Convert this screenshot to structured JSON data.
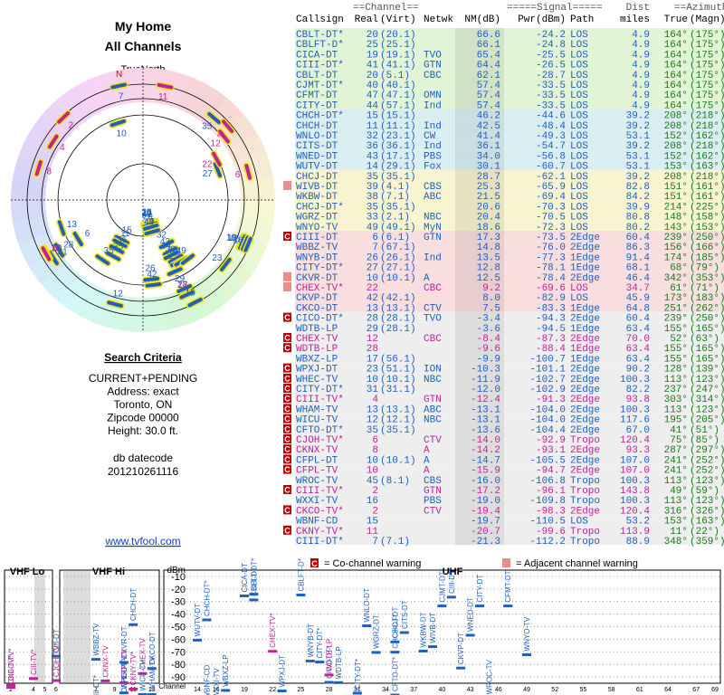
{
  "header": {
    "title": "My Home",
    "subtitle": "All Channels",
    "north_label": "TrueNorth",
    "north": "N"
  },
  "search": {
    "heading": "Search Criteria",
    "lines": [
      "CURRENT+PENDING",
      "Address: exact",
      "Toronto, ON",
      "Zipcode 00000",
      "Height: 30.0 ft."
    ],
    "datecode_label": "db datecode",
    "datecode": "201210261116",
    "link": "www.tvfool.com"
  },
  "table": {
    "group_headers": [
      "==Channel==",
      "=====Signal=====",
      "Dist",
      "==Azimuth=="
    ],
    "columns": [
      "Callsign",
      "Real",
      "(Virt)",
      "Netwk",
      "NM(dB)",
      "Pwr(dBm)",
      "Path",
      "miles",
      "True",
      "(Magn)"
    ],
    "rows": [
      [
        "CBLT-DT*",
        "20",
        "(20.1)",
        null,
        "66.6",
        "-24.2",
        "LOS",
        "4.9",
        "164°",
        "(175°)"
      ],
      [
        "CBLFT-D*",
        "25",
        "(25.1)",
        null,
        "66.1",
        "-24.8",
        "LOS",
        "4.9",
        "164°",
        "(175°)"
      ],
      [
        "CICA-DT",
        "19",
        "(19.1)",
        "TVO",
        "65.4",
        "-25.5",
        "LOS",
        "4.9",
        "164°",
        "(175°)"
      ],
      [
        "CIII-DT*",
        "41",
        "(41.1)",
        "GTN",
        "64.4",
        "-26.5",
        "LOS",
        "4.9",
        "164°",
        "(175°)"
      ],
      [
        "CBLT-DT",
        "20",
        "(5.1)",
        "CBC",
        "62.1",
        "-28.7",
        "LOS",
        "4.9",
        "164°",
        "(175°)"
      ],
      [
        "CJMT-DT*",
        "40",
        "(40.1)",
        null,
        "57.4",
        "-33.5",
        "LOS",
        "4.9",
        "164°",
        "(175°)"
      ],
      [
        "CFMT-DT",
        "47",
        "(47.1)",
        "OMN",
        "57.4",
        "-33.5",
        "LOS",
        "4.9",
        "164°",
        "(175°)"
      ],
      [
        "CITY-DT",
        "44",
        "(57.1)",
        "Ind",
        "57.4",
        "-33.5",
        "LOS",
        "4.9",
        "164°",
        "(175°)"
      ],
      [
        "CHCH-DT*",
        "15",
        "(15.1)",
        null,
        "46.2",
        "-44.6",
        "LOS",
        "39.2",
        "208°",
        "(218°)"
      ],
      [
        "CHCH-DT",
        "11",
        "(11.1)",
        "Ind",
        "42.5",
        "-48.4",
        "LOS",
        "39.2",
        "208°",
        "(218°)"
      ],
      [
        "WNLO-DT",
        "32",
        "(23.1)",
        "CW",
        "41.4",
        "-49.3",
        "LOS",
        "53.1",
        "152°",
        "(162°)"
      ],
      [
        "CITS-DT",
        "36",
        "(36.1)",
        "Ind",
        "36.1",
        "-54.7",
        "LOS",
        "39.2",
        "208°",
        "(218°)"
      ],
      [
        "WNED-DT",
        "43",
        "(17.1)",
        "PBS",
        "34.0",
        "-56.8",
        "LOS",
        "53.1",
        "152°",
        "(162°)"
      ],
      [
        "WUTV-DT",
        "14",
        "(29.1)",
        "Fox",
        "30.1",
        "-60.7",
        "LOS",
        "53.1",
        "153°",
        "(163°)"
      ],
      [
        "CHCJ-DT",
        "35",
        "(35.1)",
        null,
        "28.7",
        "-62.1",
        "LOS",
        "39.2",
        "208°",
        "(218°)"
      ],
      [
        "WIVB-DT",
        "39",
        "(4.1)",
        "CBS",
        "25.3",
        "-65.9",
        "LOS",
        "82.8",
        "151°",
        "(161°)"
      ],
      [
        "WKBW-DT",
        "38",
        "(7.1)",
        "ABC",
        "21.5",
        "-69.4",
        "LOS",
        "84.2",
        "151°",
        "(161°)"
      ],
      [
        "CHCJ-DT*",
        "35",
        "(35.1)",
        null,
        "20.6",
        "-70.3",
        "LOS",
        "39.9",
        "214°",
        "(225°)"
      ],
      [
        "WGRZ-DT",
        "33",
        "(2.1)",
        "NBC",
        "20.4",
        "-70.5",
        "LOS",
        "80.8",
        "148°",
        "(158°)"
      ],
      [
        "WNYO-TV",
        "49",
        "(49.1)",
        "MyN",
        "18.6",
        "-72.3",
        "LOS",
        "80.2",
        "143°",
        "(153°)"
      ],
      [
        "CIII-DT",
        "6",
        "(6.1)",
        "GTN",
        "17.3",
        "-73.5",
        "2Edge",
        "60.4",
        "239°",
        "(250°)"
      ],
      [
        "WBBZ-TV",
        "7",
        "(67.1)",
        null,
        "14.8",
        "-76.0",
        "2Edge",
        "86.3",
        "156°",
        "(166°)"
      ],
      [
        "WNYB-DT",
        "26",
        "(26.1)",
        "Ind",
        "13.5",
        "-77.3",
        "1Edge",
        "91.4",
        "174°",
        "(185°)"
      ],
      [
        "CITY-DT*",
        "27",
        "(27.1)",
        null,
        "12.8",
        "-78.1",
        "1Edge",
        "68.1",
        "68°",
        "(79°)"
      ],
      [
        "CKVR-DT",
        "10",
        "(10.1)",
        "A",
        "12.5",
        "-78.4",
        "2Edge",
        "46.4",
        "342°",
        "(353°)"
      ],
      [
        "CHEX-TV*",
        "22",
        null,
        "CBC",
        "9.2",
        "-69.6",
        "LOS",
        "34.7",
        "61°",
        "(71°)"
      ],
      [
        "CKVP-DT",
        "42",
        "(42.1)",
        null,
        "8.0",
        "-82.9",
        "LOS",
        "45.9",
        "173°",
        "(183°)"
      ],
      [
        "CKCO-DT",
        "13",
        "(13.1)",
        "CTV",
        "7.5",
        "-83.3",
        "1Edge",
        "64.8",
        "251°",
        "(262°)"
      ],
      [
        "CICO-DT*",
        "28",
        "(28.1)",
        "TVO",
        "-3.4",
        "-94.3",
        "2Edge",
        "60.4",
        "239°",
        "(250°)"
      ],
      [
        "WDTB-LP",
        "29",
        "(28.1)",
        null,
        "-3.6",
        "-94.5",
        "1Edge",
        "63.4",
        "155°",
        "(165°)"
      ],
      [
        "CHEX-TV",
        "12",
        null,
        "CBC",
        "-8.4",
        "-87.3",
        "2Edge",
        "70.0",
        "52°",
        "(63°)"
      ],
      [
        "WDTB-LP",
        "28",
        null,
        null,
        "-9.6",
        "-88.4",
        "1Edge",
        "63.4",
        "155°",
        "(165°)"
      ],
      [
        "WBXZ-LP",
        "17",
        "(56.1)",
        null,
        "-9.9",
        "-100.7",
        "1Edge",
        "63.4",
        "155°",
        "(165°)"
      ],
      [
        "WPXJ-DT",
        "23",
        "(51.1)",
        "ION",
        "-10.3",
        "-101.1",
        "2Edge",
        "90.2",
        "128°",
        "(139°)"
      ],
      [
        "WHEC-TV",
        "10",
        "(10.1)",
        "NBC",
        "-11.9",
        "-102.7",
        "2Edge",
        "100.3",
        "113°",
        "(123°)"
      ],
      [
        "CITY-DT*",
        "31",
        "(31.1)",
        null,
        "-12.0",
        "-102.9",
        "2Edge",
        "82.2",
        "237°",
        "(247°)"
      ],
      [
        "CIII-TV*",
        "4",
        null,
        "GTN",
        "-12.4",
        "-91.3",
        "2Edge",
        "93.8",
        "303°",
        "(314°)"
      ],
      [
        "WHAM-TV",
        "13",
        "(13.1)",
        "ABC",
        "-13.1",
        "-104.0",
        "2Edge",
        "100.3",
        "113°",
        "(123°)"
      ],
      [
        "WICU-TV",
        "12",
        "(12.1)",
        "NBC",
        "-13.1",
        "-104.0",
        "2Edge",
        "117.6",
        "195°",
        "(205°)"
      ],
      [
        "CFTO-DT*",
        "35",
        "(35.1)",
        null,
        "-13.6",
        "-104.4",
        "2Edge",
        "67.0",
        "41°",
        "(51°)"
      ],
      [
        "CJOH-TV*",
        "6",
        null,
        "CTV",
        "-14.0",
        "-92.9",
        "Tropo",
        "120.4",
        "75°",
        "(85°)"
      ],
      [
        "CKNX-TV",
        "8",
        null,
        "A",
        "-14.2",
        "-93.1",
        "2Edge",
        "93.3",
        "287°",
        "(297°)"
      ],
      [
        "CFPL-DT",
        "10",
        "(10.1)",
        "A",
        "-14.7",
        "-105.5",
        "2Edge",
        "107.0",
        "241°",
        "(252°)"
      ],
      [
        "CFPL-TV",
        "10",
        null,
        "A",
        "-15.9",
        "-94.7",
        "2Edge",
        "107.0",
        "241°",
        "(252°)"
      ],
      [
        "WROC-TV",
        "45",
        "(8.1)",
        "CBS",
        "-16.0",
        "-106.8",
        "Tropo",
        "100.3",
        "113°",
        "(123°)"
      ],
      [
        "CIII-TV*",
        "2",
        null,
        "GTN",
        "-17.2",
        "-96.1",
        "Tropo",
        "143.8",
        "49°",
        "(59°)"
      ],
      [
        "WXXI-TV",
        "16",
        null,
        "PBS",
        "-19.0",
        "-109.8",
        "Tropo",
        "100.3",
        "113°",
        "(123°)"
      ],
      [
        "CKCO-TV*",
        "2",
        null,
        "CTV",
        "-19.4",
        "-98.3",
        "2Edge",
        "120.4",
        "316°",
        "(326°)"
      ],
      [
        "WBNF-CD",
        "15",
        null,
        null,
        "-19.7",
        "-110.5",
        "LOS",
        "53.2",
        "153°",
        "(163°)"
      ],
      [
        "CKNY-TV*",
        "11",
        null,
        null,
        "-20.7",
        "-99.6",
        "Tropo",
        "113.9",
        "11°",
        "(22°)"
      ],
      [
        "CIII-DT*",
        "7",
        "(7.1)",
        null,
        "-21.3",
        "-112.2",
        "Tropo",
        "88.9",
        "348°",
        "(359°)"
      ]
    ],
    "warnings": [
      null,
      null,
      null,
      null,
      null,
      null,
      null,
      null,
      null,
      null,
      null,
      null,
      null,
      null,
      null,
      "adj",
      null,
      null,
      null,
      null,
      "C",
      null,
      null,
      null,
      "adj",
      "adj",
      null,
      null,
      "C",
      null,
      "C",
      "C",
      null,
      "C",
      "C",
      "C",
      "C",
      "C",
      "C",
      "C",
      "C",
      "C",
      "C",
      "C",
      null,
      "C",
      null,
      "C",
      null,
      "C",
      null
    ],
    "analog": [
      25,
      30,
      31,
      36,
      40,
      41,
      43,
      45,
      47,
      49
    ],
    "digital_color": "#1f5fbf",
    "analog_color": "#c0229a"
  },
  "spectrum": {
    "bands": [
      "VHF Lo",
      "VHF Hi",
      "UHF"
    ],
    "y_unit": "dBm",
    "x_label": "Channel",
    "ylim": [
      -95,
      -5
    ],
    "yticks": [
      -10,
      -20,
      -30,
      -40,
      -50,
      -60,
      -70,
      -80,
      -90
    ],
    "xticks": [
      2,
      4,
      5,
      6,
      7,
      9,
      11,
      13,
      14,
      16,
      19,
      22,
      25,
      28,
      31,
      34,
      37,
      40,
      43,
      46,
      49,
      52,
      55,
      58,
      61,
      64,
      67,
      69
    ]
  },
  "legend": {
    "co_mark": "C",
    "co": "= Co-channel warning",
    "adj": "= Adjacent channel warning"
  }
}
